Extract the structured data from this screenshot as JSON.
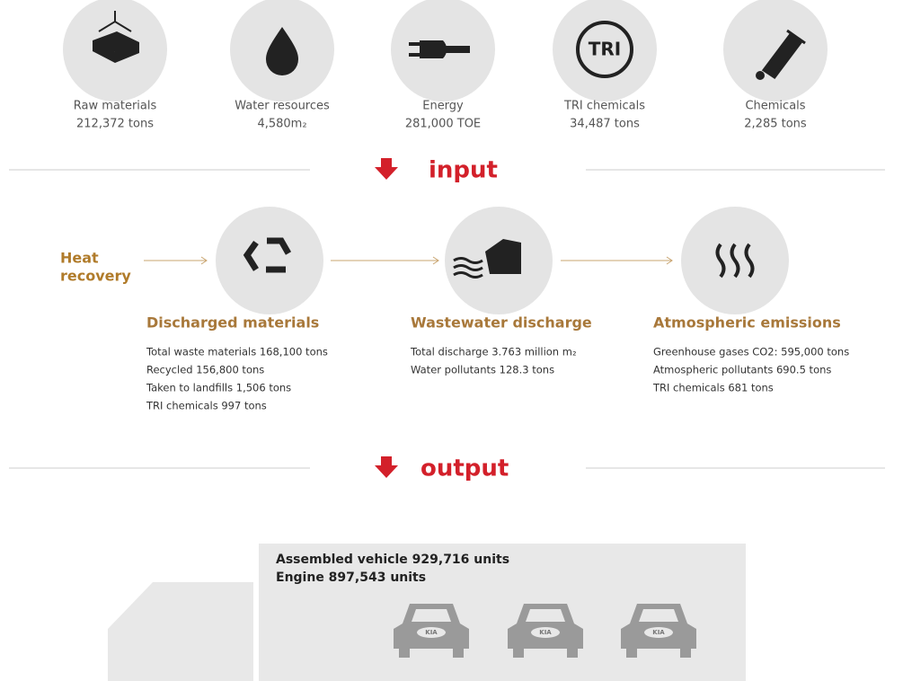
{
  "inputs": [
    {
      "label": "Raw materials",
      "value": "212,372 tons"
    },
    {
      "label": "Water resources",
      "value": "4,580m₂"
    },
    {
      "label": "Energy",
      "value": "281,000 TOE"
    },
    {
      "label": "TRI chemicals",
      "value": "34,487 tons"
    },
    {
      "label": "Chemicals",
      "value": "2,285 tons"
    }
  ],
  "tri_icon": "TRI",
  "input_heading": "input",
  "heat_recovery": [
    "Heat",
    "recovery"
  ],
  "processes": [
    {
      "title": "Discharged materials",
      "lines": [
        "Total waste materials  168,100 tons",
        "Recycled 156,800 tons",
        "Taken to landfills 1,506 tons",
        "TRI chemicals 997 tons"
      ]
    },
    {
      "title": "Wastewater discharge",
      "lines": [
        "Total discharge 3.763 million m₂",
        "Water pollutants 128.3 tons"
      ]
    },
    {
      "title": "Atmospheric emissions",
      "lines": [
        "Greenhouse gases CO2: 595,000 tons",
        "Atmospheric pollutants 690.5 tons",
        "TRI chemicals 681 tons"
      ]
    }
  ],
  "output_heading": "output",
  "products": [
    "Assembled vehicle 929,716 units",
    "Engine 897,543 units"
  ],
  "car_badges": [
    "KIA",
    "KIA",
    "KIA"
  ]
}
